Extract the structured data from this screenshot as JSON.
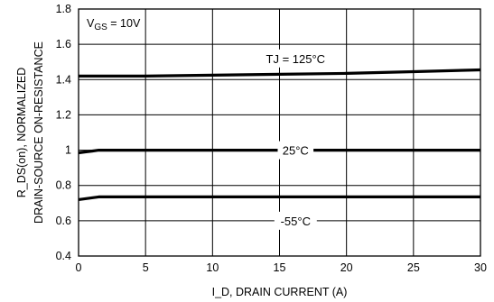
{
  "chart_data": {
    "type": "line",
    "xlabel": "I_D, DRAIN CURRENT (A)",
    "ylabel_line1": "R_DS(on), NORMALIZED",
    "ylabel_line2": "DRAIN-SOURCE ON-RESISTANCE",
    "xlim": [
      0,
      30
    ],
    "ylim": [
      0.4,
      1.8
    ],
    "x_ticks": [
      0,
      5,
      10,
      15,
      20,
      25,
      30
    ],
    "y_ticks": [
      0.4,
      0.6,
      0.8,
      1,
      1.2,
      1.4,
      1.6,
      1.8
    ],
    "y_tick_labels": [
      "0.4",
      "0.6",
      "0.8",
      "1",
      "1.2",
      "1.4",
      "1.6",
      "1.8"
    ],
    "grid": true,
    "condition": {
      "prefix": "V",
      "subscript": "GS",
      "suffix": " = 10V"
    },
    "series": [
      {
        "name": "TJ = 125°C",
        "x": [
          0,
          2,
          5,
          10,
          15,
          20,
          25,
          30
        ],
        "y": [
          1.42,
          1.42,
          1.42,
          1.425,
          1.43,
          1.435,
          1.445,
          1.455
        ]
      },
      {
        "name": "25°C",
        "x": [
          0,
          0.5,
          1,
          1.5,
          2,
          5,
          10,
          15,
          20,
          25,
          30
        ],
        "y": [
          0.985,
          0.99,
          0.995,
          1.0,
          1.0,
          1.0,
          1.0,
          1.0,
          1.0,
          1.0,
          1.0
        ]
      },
      {
        "name": "-55°C",
        "x": [
          0,
          0.5,
          1,
          1.5,
          2,
          5,
          10,
          15,
          20,
          25,
          30
        ],
        "y": [
          0.72,
          0.725,
          0.73,
          0.735,
          0.735,
          0.735,
          0.735,
          0.735,
          0.735,
          0.735,
          0.735
        ]
      }
    ],
    "annotations": [
      {
        "series": 0,
        "text": "TJ = 125°C",
        "x": 16.2,
        "y": 1.52
      },
      {
        "series": 1,
        "text": "25°C",
        "x": 16.2,
        "y": 1.0
      },
      {
        "series": 2,
        "text": "-55°C",
        "x": 16.2,
        "y": 0.6
      }
    ]
  }
}
